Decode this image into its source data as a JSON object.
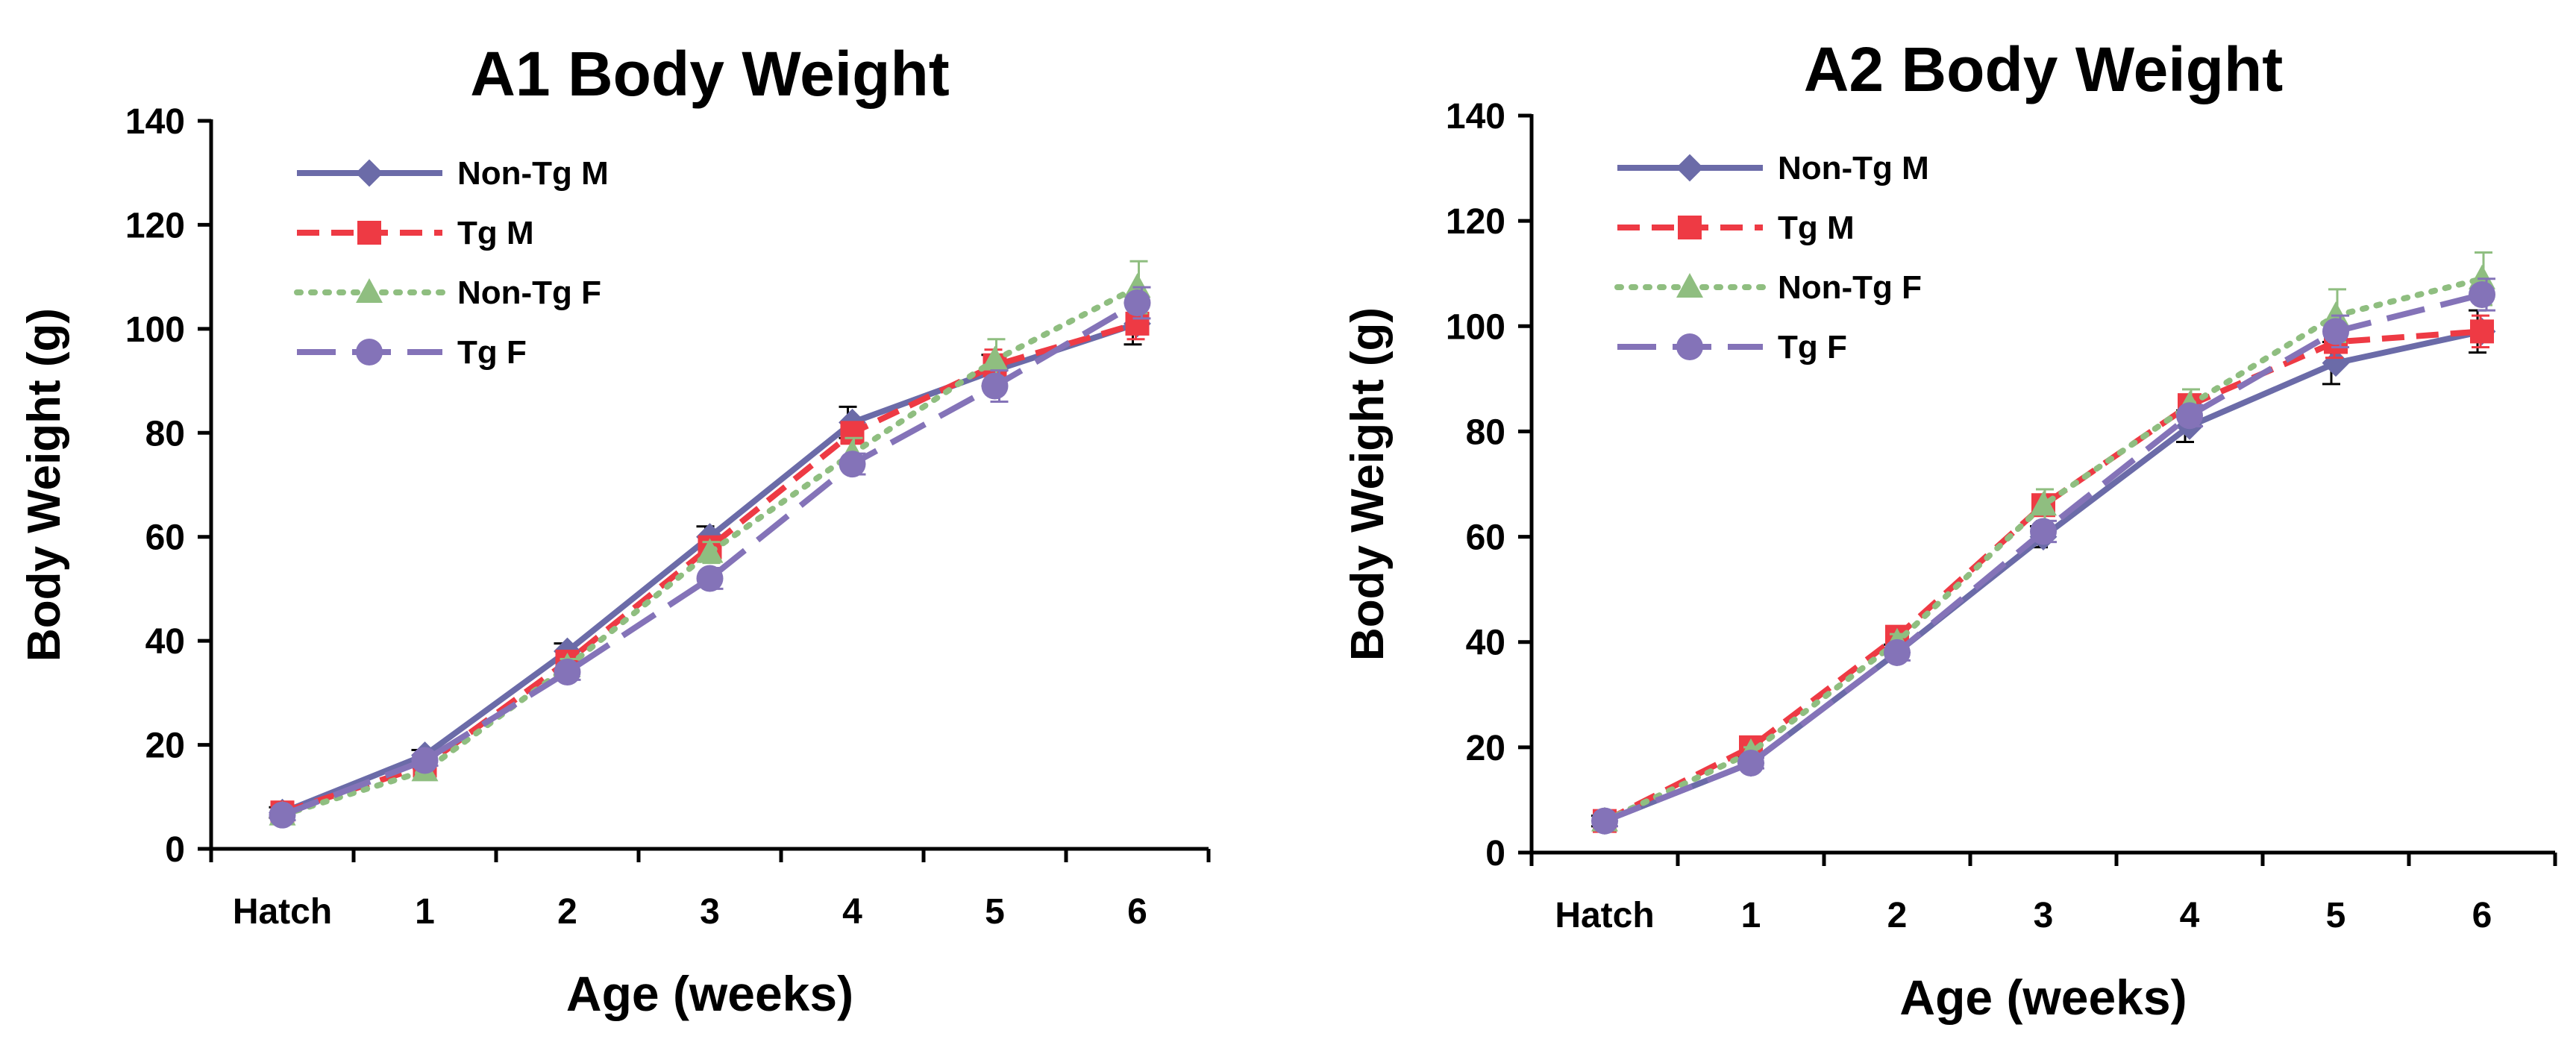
{
  "chart_data": [
    {
      "type": "line",
      "title": "A1 Body Weight",
      "xlabel": "Age (weeks)",
      "ylabel": "Body Weight (g)",
      "categories": [
        "Hatch",
        "1",
        "2",
        "3",
        "4",
        "5",
        "6"
      ],
      "ylim": [
        0,
        140
      ],
      "yticks": [
        "0",
        "20",
        "40",
        "60",
        "80",
        "100",
        "120",
        "140"
      ],
      "grid": false,
      "legend_position": "top-left",
      "series": [
        {
          "name": "Non-Tg M",
          "color": "#6b6ba8",
          "line": "solid",
          "marker": "diamond",
          "values": [
            7,
            18,
            38,
            60,
            82,
            92,
            101
          ],
          "error": [
            1,
            1,
            1.5,
            2,
            3,
            3,
            4
          ]
        },
        {
          "name": "Tg M",
          "color": "#ee3a44",
          "line": "dashed",
          "marker": "square",
          "values": [
            7,
            16,
            36,
            58,
            80,
            93,
            101
          ],
          "error": [
            1,
            1,
            1.5,
            2,
            2,
            3,
            3
          ]
        },
        {
          "name": "Non-Tg F",
          "color": "#8fbe80",
          "line": "dotted",
          "marker": "triangle",
          "values": [
            6.5,
            15,
            35,
            57,
            76,
            94,
            108
          ],
          "error": [
            1,
            1,
            1.5,
            2,
            3,
            4,
            5
          ]
        },
        {
          "name": "Tg F",
          "color": "#8473b8",
          "line": "longdash",
          "marker": "circle",
          "values": [
            6.5,
            17,
            34,
            52,
            74,
            89,
            105
          ],
          "error": [
            1,
            1,
            1.5,
            2,
            2,
            3,
            3
          ]
        }
      ]
    },
    {
      "type": "line",
      "title": "A2 Body Weight",
      "xlabel": "Age (weeks)",
      "ylabel": "Body Weight (g)",
      "categories": [
        "Hatch",
        "1",
        "2",
        "3",
        "4",
        "5",
        "6"
      ],
      "ylim": [
        0,
        140
      ],
      "yticks": [
        "0",
        "20",
        "40",
        "60",
        "80",
        "100",
        "120",
        "140"
      ],
      "grid": false,
      "legend_position": "top-left",
      "series": [
        {
          "name": "Non-Tg M",
          "color": "#6b6ba8",
          "line": "solid",
          "marker": "diamond",
          "values": [
            6,
            17,
            38,
            60,
            81,
            93,
            99
          ],
          "error": [
            1,
            1,
            1.5,
            2,
            3,
            4,
            4
          ]
        },
        {
          "name": "Tg M",
          "color": "#ee3a44",
          "line": "dashed",
          "marker": "square",
          "values": [
            6,
            20,
            41,
            66,
            85,
            97,
            99
          ],
          "error": [
            1,
            1,
            1.5,
            2,
            2,
            3,
            3
          ]
        },
        {
          "name": "Non-Tg F",
          "color": "#8fbe80",
          "line": "dotted",
          "marker": "triangle",
          "values": [
            6,
            19,
            40,
            66,
            85,
            102,
            109
          ],
          "error": [
            1,
            1,
            1.5,
            3,
            3,
            5,
            5
          ]
        },
        {
          "name": "Tg F",
          "color": "#8473b8",
          "line": "longdash",
          "marker": "circle",
          "values": [
            6,
            17,
            38,
            61,
            83,
            99,
            106
          ],
          "error": [
            1,
            1,
            1.5,
            2,
            2,
            3,
            3
          ]
        }
      ]
    }
  ]
}
